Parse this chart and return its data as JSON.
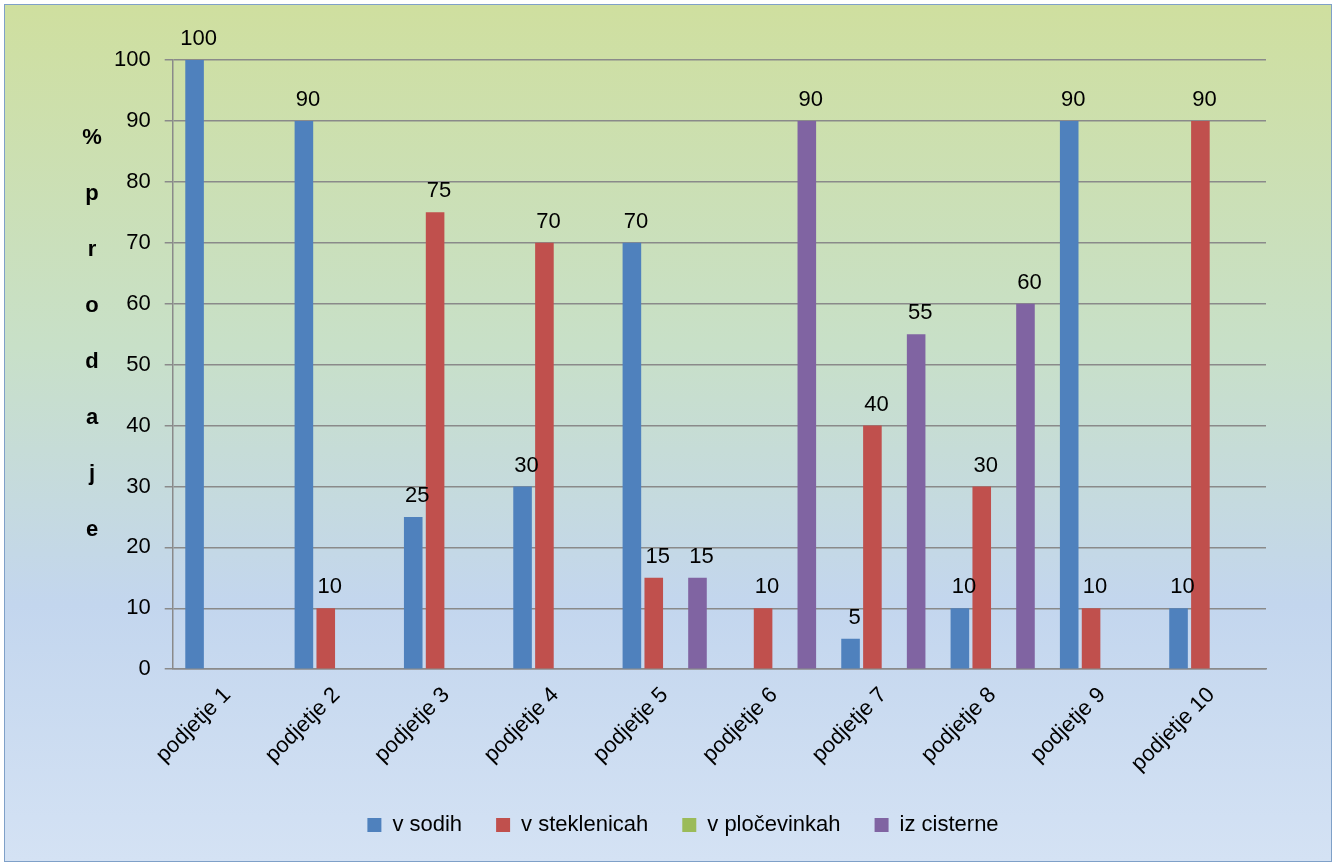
{
  "chart_data": {
    "type": "bar",
    "ylabel": "% prodaje",
    "categories": [
      "podjetje 1",
      "podjetje 2",
      "podjetje 3",
      "podjetje 4",
      "podjetje 5",
      "podjetje 6",
      "podjetje 7",
      "podjetje 8",
      "podjetje 9",
      "podjetje 10"
    ],
    "series": [
      {
        "name": "v sodih",
        "color": "#4f81bd",
        "values": [
          100,
          90,
          25,
          30,
          70,
          0,
          5,
          10,
          90,
          10
        ],
        "value_labels": [
          "100",
          "90",
          "25",
          "30",
          "70",
          null,
          "5",
          "10",
          "90",
          "10"
        ]
      },
      {
        "name": "v steklenicah",
        "color": "#c0504d",
        "values": [
          0,
          10,
          75,
          70,
          15,
          10,
          40,
          30,
          10,
          90
        ],
        "value_labels": [
          null,
          "10",
          "75",
          "70",
          "15",
          "10",
          "40",
          "30",
          "10",
          "90"
        ]
      },
      {
        "name": "v pločevinkah",
        "color": "#9bbb59",
        "values": [
          0,
          0,
          0,
          0,
          0,
          0,
          0,
          0,
          0,
          0
        ],
        "value_labels": [
          null,
          null,
          null,
          null,
          null,
          null,
          null,
          null,
          null,
          null
        ]
      },
      {
        "name": "iz cisterne",
        "color": "#8064a2",
        "values": [
          0,
          0,
          0,
          0,
          15,
          90,
          55,
          60,
          0,
          0
        ],
        "value_labels": [
          null,
          null,
          null,
          null,
          "15",
          "90",
          "55",
          "60",
          null,
          null
        ]
      }
    ],
    "ylim": [
      0,
      100
    ],
    "yticks": [
      0,
      10,
      20,
      30,
      40,
      50,
      60,
      70,
      80,
      90,
      100
    ],
    "grid": "y",
    "legend": "bottom"
  }
}
